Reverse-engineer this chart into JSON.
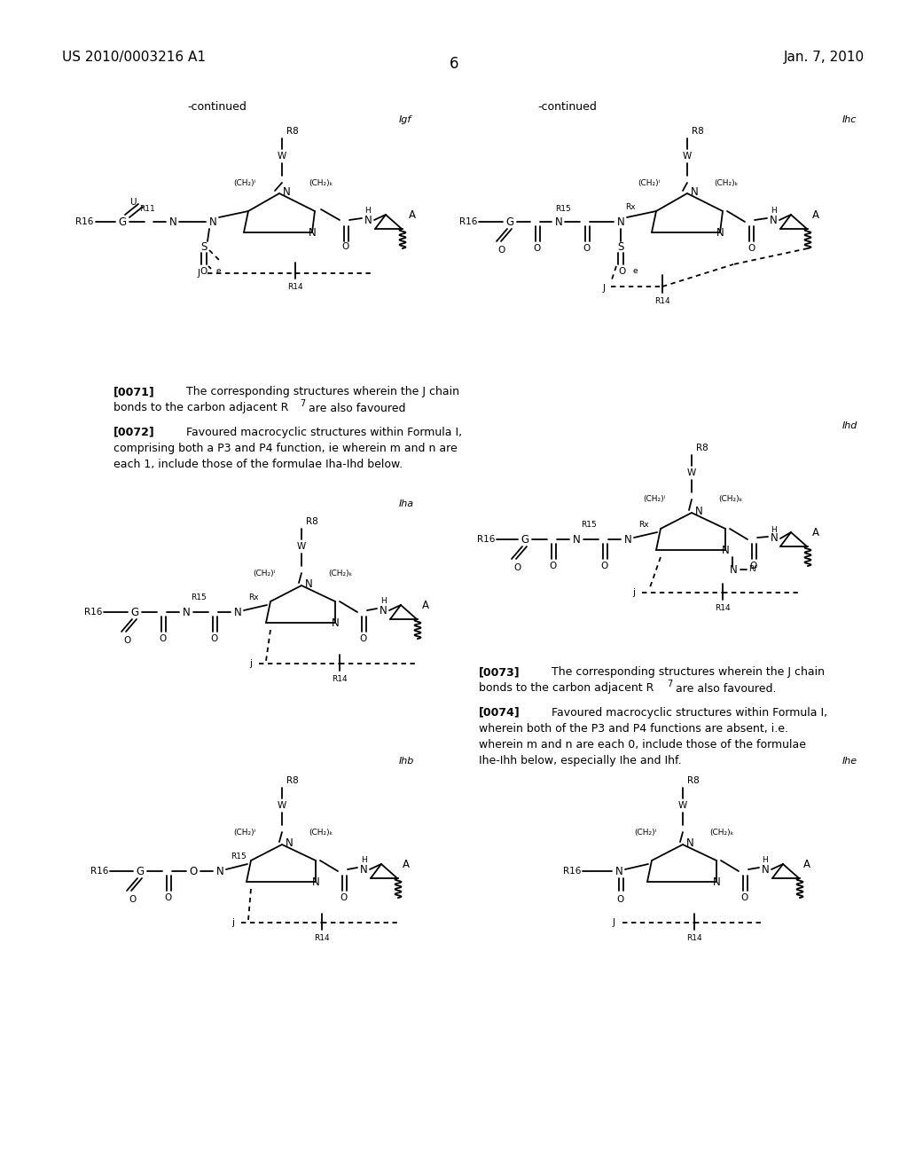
{
  "page_number": "6",
  "patent_number": "US 2010/0003216 A1",
  "patent_date": "Jan. 7, 2010",
  "bg": "#ffffff",
  "para0071": "[0071]   The corresponding structures wherein the J chain\nbonds to the carbon adjacent R⁷ are also favoured",
  "para0072": "[0072]   Favoured macrocyclic structures within Formula I,\ncomprising both a P3 and P4 function, ie wherein m and n are\neach 1, include those of the formulae Iha-Ihd below.",
  "para0073": "[0073]   The corresponding structures wherein the J chain\nbonds to the carbon adjacent R⁷ are also favoured.",
  "para0074": "[0074]   Favoured macrocyclic structures within Formula I,\nwherein both of the P3 and P4 functions are absent, i.e.\nwherein m and n are each 0, include those of the formulae\nIhe-Ihh below, especially Ihe and Ihf."
}
